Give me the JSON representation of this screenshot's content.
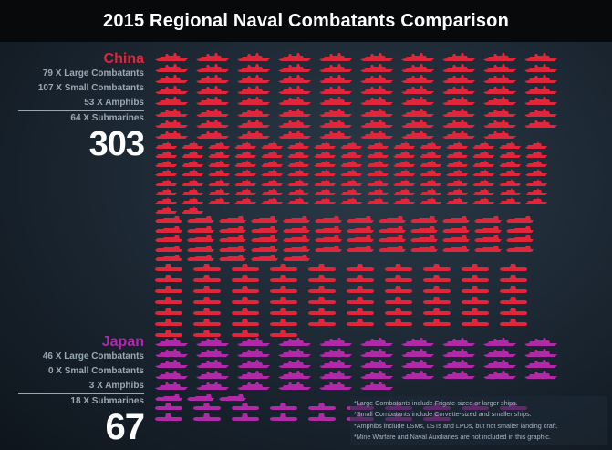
{
  "title": "2015 Regional Naval Combatants Comparison",
  "colors": {
    "china": "#e0263a",
    "japan": "#b02aa8",
    "stat_text": "#9aa8b5"
  },
  "countries": [
    {
      "name": "China",
      "stats": [
        {
          "label": "79 X Large Combatants",
          "count": 79,
          "type": "large-combatant"
        },
        {
          "label": "107 X Small Combatants",
          "count": 107,
          "type": "small-combatant"
        },
        {
          "label": "53 X Amphibs",
          "count": 53,
          "type": "amphib"
        },
        {
          "label": "64 X Submarines",
          "count": 64,
          "type": "submarine"
        }
      ],
      "total": "303"
    },
    {
      "name": "Japan",
      "stats": [
        {
          "label": "46 X Large Combatants",
          "count": 46,
          "type": "large-combatant"
        },
        {
          "label": "0 X Small Combatants",
          "count": 0,
          "type": "small-combatant"
        },
        {
          "label": "3 X Amphibs",
          "count": 3,
          "type": "amphib"
        },
        {
          "label": "18 X Submarines",
          "count": 18,
          "type": "submarine"
        }
      ],
      "total": "67"
    }
  ],
  "notes": [
    "*Large Combatants include Frigate-sized or larger ships.",
    "*Small Combatants include Corvette-sized and smaller ships.",
    "*Amphibs include LSMs, LSTs and LPDs, but not smaller landing craft.",
    "*Mine Warfare and Naval Auxiliaries are not included in this graphic."
  ]
}
